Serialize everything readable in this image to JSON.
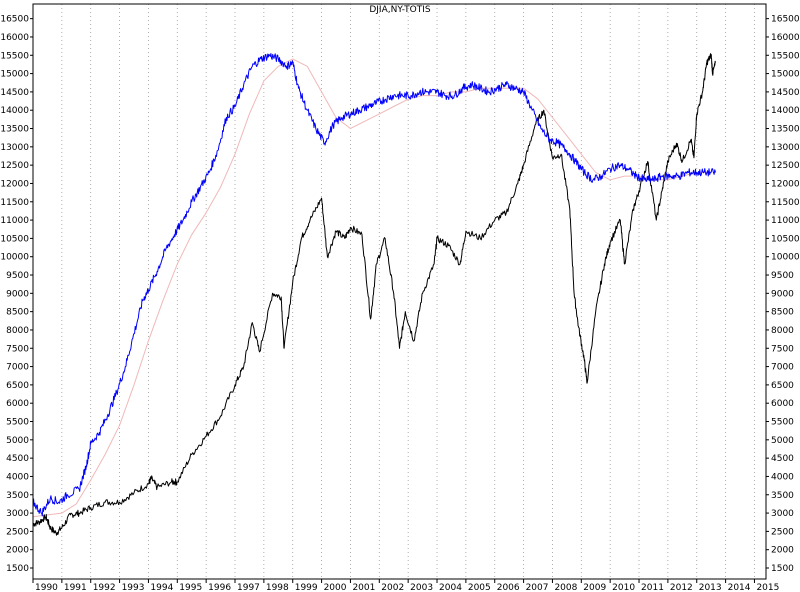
{
  "title": "DJIA,NY-TOTIS",
  "chart_data": {
    "type": "line",
    "title": "DJIA,NY-TOTIS",
    "xlabel": "",
    "ylabel": "",
    "x_ticks": [
      "1990",
      "1991",
      "1992",
      "1993",
      "1994",
      "1995",
      "1996",
      "1997",
      "1998",
      "1999",
      "2000",
      "2001",
      "2002",
      "2003",
      "2004",
      "2005",
      "2006",
      "2007",
      "2008",
      "2009",
      "2010",
      "2011",
      "2012",
      "2013",
      "2014",
      "2015"
    ],
    "y_ticks": [
      1500,
      2000,
      2500,
      3000,
      3500,
      4000,
      4500,
      5000,
      5500,
      6000,
      6500,
      7000,
      7500,
      8000,
      8500,
      9000,
      9500,
      10000,
      10500,
      11000,
      11500,
      12000,
      12500,
      13000,
      13500,
      14000,
      14500,
      15000,
      15500,
      16000,
      16500
    ],
    "xlim": [
      1990,
      2015.4
    ],
    "ylim": [
      1200,
      16900
    ],
    "grid": "vertical-dotted",
    "legend": "none",
    "colors": {
      "djia": "#000000",
      "nyse": "#0000ff",
      "nyse_ma": "#f0b8b8",
      "grid": "#9a9a9a"
    },
    "series": [
      {
        "key": "djia",
        "values": [
          [
            1990.0,
            2700
          ],
          [
            1990.2,
            2750
          ],
          [
            1990.45,
            2900
          ],
          [
            1990.6,
            2600
          ],
          [
            1990.8,
            2450
          ],
          [
            1991.0,
            2600
          ],
          [
            1991.3,
            2950
          ],
          [
            1991.6,
            3000
          ],
          [
            1992.0,
            3150
          ],
          [
            1992.5,
            3300
          ],
          [
            1993.0,
            3300
          ],
          [
            1993.5,
            3550
          ],
          [
            1994.0,
            3800
          ],
          [
            1994.1,
            3950
          ],
          [
            1994.3,
            3700
          ],
          [
            1994.8,
            3850
          ],
          [
            1995.0,
            3850
          ],
          [
            1995.5,
            4600
          ],
          [
            1996.0,
            5100
          ],
          [
            1996.5,
            5650
          ],
          [
            1997.0,
            6500
          ],
          [
            1997.3,
            7000
          ],
          [
            1997.6,
            8200
          ],
          [
            1997.85,
            7400
          ],
          [
            1998.3,
            9000
          ],
          [
            1998.6,
            8900
          ],
          [
            1998.7,
            7500
          ],
          [
            1999.0,
            9300
          ],
          [
            1999.3,
            10500
          ],
          [
            1999.6,
            11000
          ],
          [
            2000.0,
            11600
          ],
          [
            2000.2,
            10000
          ],
          [
            2000.5,
            10700
          ],
          [
            2000.8,
            10500
          ],
          [
            2001.0,
            10800
          ],
          [
            2001.4,
            10600
          ],
          [
            2001.7,
            8300
          ],
          [
            2001.9,
            9800
          ],
          [
            2002.2,
            10500
          ],
          [
            2002.5,
            9000
          ],
          [
            2002.7,
            7500
          ],
          [
            2002.9,
            8500
          ],
          [
            2003.2,
            7700
          ],
          [
            2003.5,
            9000
          ],
          [
            2003.9,
            9800
          ],
          [
            2004.0,
            10500
          ],
          [
            2004.4,
            10300
          ],
          [
            2004.8,
            9800
          ],
          [
            2005.0,
            10700
          ],
          [
            2005.5,
            10500
          ],
          [
            2006.0,
            11000
          ],
          [
            2006.4,
            11200
          ],
          [
            2006.8,
            12000
          ],
          [
            2007.0,
            12500
          ],
          [
            2007.4,
            13600
          ],
          [
            2007.7,
            14000
          ],
          [
            2008.0,
            12700
          ],
          [
            2008.3,
            12800
          ],
          [
            2008.6,
            11300
          ],
          [
            2008.75,
            9000
          ],
          [
            2008.9,
            8100
          ],
          [
            2009.1,
            7200
          ],
          [
            2009.2,
            6550
          ],
          [
            2009.5,
            8500
          ],
          [
            2009.8,
            9800
          ],
          [
            2010.0,
            10400
          ],
          [
            2010.35,
            11000
          ],
          [
            2010.5,
            9800
          ],
          [
            2010.8,
            11300
          ],
          [
            2011.0,
            11800
          ],
          [
            2011.3,
            12600
          ],
          [
            2011.6,
            11000
          ],
          [
            2011.8,
            11800
          ],
          [
            2012.0,
            12600
          ],
          [
            2012.3,
            13100
          ],
          [
            2012.5,
            12600
          ],
          [
            2012.8,
            13200
          ],
          [
            2012.9,
            12700
          ],
          [
            2013.0,
            13900
          ],
          [
            2013.2,
            14500
          ],
          [
            2013.35,
            15300
          ],
          [
            2013.5,
            15500
          ],
          [
            2013.55,
            15000
          ],
          [
            2013.65,
            15300
          ]
        ]
      },
      {
        "key": "nyse",
        "values": [
          [
            1990.0,
            3300
          ],
          [
            1990.3,
            3000
          ],
          [
            1990.6,
            3400
          ],
          [
            1990.9,
            3300
          ],
          [
            1991.2,
            3500
          ],
          [
            1991.6,
            3650
          ],
          [
            1991.85,
            4300
          ],
          [
            1992.0,
            4900
          ],
          [
            1992.3,
            5200
          ],
          [
            1992.6,
            5700
          ],
          [
            1992.9,
            6300
          ],
          [
            1993.2,
            7000
          ],
          [
            1993.5,
            7900
          ],
          [
            1993.8,
            8800
          ],
          [
            1994.0,
            9100
          ],
          [
            1994.3,
            9600
          ],
          [
            1994.6,
            10200
          ],
          [
            1994.9,
            10600
          ],
          [
            1995.2,
            11000
          ],
          [
            1995.5,
            11500
          ],
          [
            1995.8,
            11900
          ],
          [
            1996.1,
            12300
          ],
          [
            1996.4,
            12900
          ],
          [
            1996.7,
            13800
          ],
          [
            1997.0,
            14100
          ],
          [
            1997.3,
            14700
          ],
          [
            1997.6,
            15200
          ],
          [
            1997.9,
            15400
          ],
          [
            1998.2,
            15500
          ],
          [
            1998.5,
            15400
          ],
          [
            1998.8,
            15200
          ],
          [
            1999.0,
            15300
          ],
          [
            1999.2,
            14600
          ],
          [
            1999.5,
            14000
          ],
          [
            1999.8,
            13500
          ],
          [
            2000.1,
            13100
          ],
          [
            2000.4,
            13600
          ],
          [
            2000.7,
            13800
          ],
          [
            2001.0,
            13900
          ],
          [
            2001.3,
            14000
          ],
          [
            2001.6,
            14100
          ],
          [
            2001.9,
            14200
          ],
          [
            2002.2,
            14300
          ],
          [
            2002.5,
            14400
          ],
          [
            2002.8,
            14400
          ],
          [
            2003.1,
            14400
          ],
          [
            2003.4,
            14500
          ],
          [
            2003.7,
            14500
          ],
          [
            2004.0,
            14500
          ],
          [
            2004.3,
            14400
          ],
          [
            2004.6,
            14400
          ],
          [
            2004.9,
            14600
          ],
          [
            2005.2,
            14700
          ],
          [
            2005.5,
            14600
          ],
          [
            2005.8,
            14500
          ],
          [
            2006.1,
            14600
          ],
          [
            2006.4,
            14700
          ],
          [
            2006.7,
            14600
          ],
          [
            2007.0,
            14500
          ],
          [
            2007.3,
            14000
          ],
          [
            2007.6,
            13500
          ],
          [
            2007.9,
            13200
          ],
          [
            2008.2,
            13100
          ],
          [
            2008.5,
            12900
          ],
          [
            2008.8,
            12600
          ],
          [
            2009.1,
            12300
          ],
          [
            2009.4,
            12100
          ],
          [
            2009.7,
            12200
          ],
          [
            2010.0,
            12400
          ],
          [
            2010.3,
            12500
          ],
          [
            2010.6,
            12400
          ],
          [
            2010.9,
            12200
          ],
          [
            2011.2,
            12100
          ],
          [
            2011.5,
            12100
          ],
          [
            2011.8,
            12200
          ],
          [
            2012.1,
            12200
          ],
          [
            2012.4,
            12200
          ],
          [
            2012.7,
            12300
          ],
          [
            2013.0,
            12300
          ],
          [
            2013.3,
            12300
          ],
          [
            2013.65,
            12300
          ]
        ]
      },
      {
        "key": "nyse_ma",
        "values": [
          [
            1990.0,
            2900
          ],
          [
            1990.5,
            2950
          ],
          [
            1991.0,
            3000
          ],
          [
            1991.5,
            3250
          ],
          [
            1992.0,
            3900
          ],
          [
            1992.5,
            4600
          ],
          [
            1993.0,
            5400
          ],
          [
            1993.5,
            6500
          ],
          [
            1994.0,
            7700
          ],
          [
            1994.5,
            8800
          ],
          [
            1995.0,
            9800
          ],
          [
            1995.5,
            10600
          ],
          [
            1996.0,
            11200
          ],
          [
            1996.5,
            11900
          ],
          [
            1997.0,
            12800
          ],
          [
            1997.5,
            13900
          ],
          [
            1998.0,
            14800
          ],
          [
            1998.5,
            15200
          ],
          [
            1999.0,
            15400
          ],
          [
            1999.5,
            15200
          ],
          [
            2000.0,
            14500
          ],
          [
            2000.5,
            13800
          ],
          [
            2001.0,
            13500
          ],
          [
            2001.5,
            13700
          ],
          [
            2002.0,
            13900
          ],
          [
            2002.5,
            14100
          ],
          [
            2003.0,
            14300
          ],
          [
            2003.5,
            14400
          ],
          [
            2004.0,
            14400
          ],
          [
            2004.5,
            14500
          ],
          [
            2005.0,
            14500
          ],
          [
            2005.5,
            14600
          ],
          [
            2006.0,
            14600
          ],
          [
            2006.5,
            14600
          ],
          [
            2007.0,
            14600
          ],
          [
            2007.5,
            14300
          ],
          [
            2008.0,
            13800
          ],
          [
            2008.5,
            13300
          ],
          [
            2009.0,
            12800
          ],
          [
            2009.5,
            12300
          ],
          [
            2010.0,
            12100
          ],
          [
            2010.5,
            12200
          ],
          [
            2011.0,
            12200
          ],
          [
            2011.5,
            12100
          ],
          [
            2012.0,
            12100
          ],
          [
            2012.5,
            12200
          ],
          [
            2013.0,
            12300
          ],
          [
            2013.5,
            12300
          ]
        ]
      }
    ]
  }
}
